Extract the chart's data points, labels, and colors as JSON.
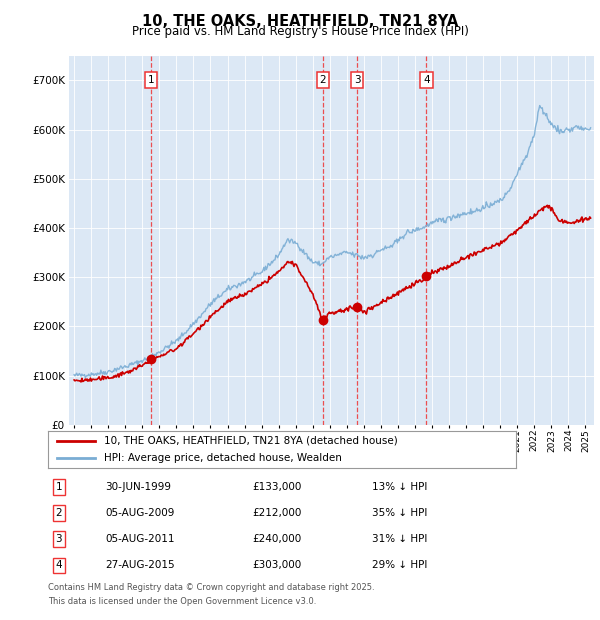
{
  "title": "10, THE OAKS, HEATHFIELD, TN21 8YA",
  "subtitle": "Price paid vs. HM Land Registry's House Price Index (HPI)",
  "legend_line1": "10, THE OAKS, HEATHFIELD, TN21 8YA (detached house)",
  "legend_line2": "HPI: Average price, detached house, Wealden",
  "footnote1": "Contains HM Land Registry data © Crown copyright and database right 2025.",
  "footnote2": "This data is licensed under the Open Government Licence v3.0.",
  "transactions": [
    {
      "num": 1,
      "date": "30-JUN-1999",
      "price": "£133,000",
      "pct": "13%",
      "year": 1999.5,
      "price_val": 133000
    },
    {
      "num": 2,
      "date": "05-AUG-2009",
      "price": "£212,000",
      "pct": "35%",
      "year": 2009.6,
      "price_val": 212000
    },
    {
      "num": 3,
      "date": "05-AUG-2011",
      "price": "£240,000",
      "pct": "31%",
      "year": 2011.6,
      "price_val": 240000
    },
    {
      "num": 4,
      "date": "27-AUG-2015",
      "price": "£303,000",
      "pct": "29%",
      "year": 2015.67,
      "price_val": 303000
    }
  ],
  "price_color": "#cc0000",
  "hpi_color": "#7aadd4",
  "bg_color": "#dce8f5",
  "plot_bg": "#ffffff",
  "vline_color": "#ee3333",
  "ylim": [
    0,
    750000
  ],
  "yticks": [
    0,
    100000,
    200000,
    300000,
    400000,
    500000,
    600000,
    700000
  ],
  "xlim_start": 1994.7,
  "xlim_end": 2025.5
}
